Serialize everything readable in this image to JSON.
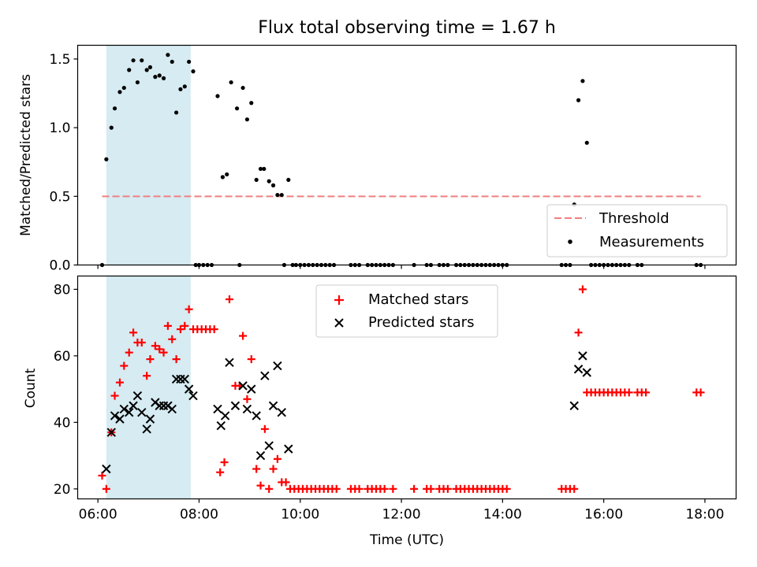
{
  "chart_data": [
    {
      "type": "scatter",
      "title": "Flux total observing time = 1.67 h",
      "ylabel": "Matched/Predicted stars",
      "xlim": [
        "05:36",
        "18:37"
      ],
      "ylim": [
        0,
        1.6
      ],
      "yticks": [
        0.0,
        0.5,
        1.0,
        1.5
      ],
      "ytick_labels": [
        "0.0",
        "0.5",
        "1.0",
        "1.5"
      ],
      "grid": false,
      "legend_position": "lower right",
      "highlight_span": [
        "06:10",
        "07:50"
      ],
      "highlight_color": "#add8e6",
      "threshold": {
        "name": "Threshold",
        "y": 0.5,
        "x_start": "06:05",
        "x_end": "17:55",
        "color": "#f08080"
      },
      "series": [
        {
          "name": "Measurements",
          "color": "#000000",
          "points": [
            [
              "06:05",
              0
            ],
            [
              "06:10",
              0.77
            ],
            [
              "06:16",
              1.0
            ],
            [
              "06:20",
              1.14
            ],
            [
              "06:26",
              1.26
            ],
            [
              "06:31",
              1.29
            ],
            [
              "06:37",
              1.42
            ],
            [
              "06:42",
              1.49
            ],
            [
              "06:47",
              1.33
            ],
            [
              "06:52",
              1.49
            ],
            [
              "06:58",
              1.42
            ],
            [
              "07:02",
              1.44
            ],
            [
              "07:08",
              1.37
            ],
            [
              "07:13",
              1.38
            ],
            [
              "07:18",
              1.36
            ],
            [
              "07:23",
              1.53
            ],
            [
              "07:28",
              1.48
            ],
            [
              "07:33",
              1.11
            ],
            [
              "07:38",
              1.28
            ],
            [
              "07:43",
              1.3
            ],
            [
              "07:48",
              1.48
            ],
            [
              "07:53",
              1.41
            ],
            [
              "07:56",
              0
            ],
            [
              "08:00",
              0
            ],
            [
              "08:05",
              0
            ],
            [
              "08:10",
              0
            ],
            [
              "08:15",
              0
            ],
            [
              "08:22",
              1.23
            ],
            [
              "08:28",
              0.64
            ],
            [
              "08:33",
              0.66
            ],
            [
              "08:38",
              1.33
            ],
            [
              "08:45",
              1.14
            ],
            [
              "08:48",
              0
            ],
            [
              "08:52",
              1.29
            ],
            [
              "08:57",
              1.06
            ],
            [
              "09:02",
              1.18
            ],
            [
              "09:08",
              0.62
            ],
            [
              "09:13",
              0.7
            ],
            [
              "09:17",
              0.7
            ],
            [
              "09:23",
              0.61
            ],
            [
              "09:28",
              0.58
            ],
            [
              "09:33",
              0.51
            ],
            [
              "09:38",
              0.51
            ],
            [
              "09:41",
              0
            ],
            [
              "09:46",
              0.62
            ],
            [
              "09:51",
              0
            ],
            [
              "09:55",
              0
            ],
            [
              "10:00",
              0
            ],
            [
              "10:05",
              0
            ],
            [
              "10:10",
              0
            ],
            [
              "10:15",
              0
            ],
            [
              "10:20",
              0
            ],
            [
              "10:25",
              0
            ],
            [
              "10:30",
              0
            ],
            [
              "10:35",
              0
            ],
            [
              "10:40",
              0
            ],
            [
              "11:00",
              0
            ],
            [
              "11:05",
              0
            ],
            [
              "11:10",
              0
            ],
            [
              "11:20",
              0
            ],
            [
              "11:25",
              0
            ],
            [
              "11:30",
              0
            ],
            [
              "11:35",
              0
            ],
            [
              "11:40",
              0
            ],
            [
              "11:45",
              0
            ],
            [
              "11:50",
              0
            ],
            [
              "12:15",
              0
            ],
            [
              "12:30",
              0
            ],
            [
              "12:35",
              0
            ],
            [
              "12:45",
              0
            ],
            [
              "12:50",
              0
            ],
            [
              "12:55",
              0
            ],
            [
              "13:05",
              0
            ],
            [
              "13:10",
              0
            ],
            [
              "13:15",
              0
            ],
            [
              "13:20",
              0
            ],
            [
              "13:25",
              0
            ],
            [
              "13:30",
              0
            ],
            [
              "13:35",
              0
            ],
            [
              "13:40",
              0
            ],
            [
              "13:45",
              0
            ],
            [
              "13:50",
              0
            ],
            [
              "13:55",
              0
            ],
            [
              "14:00",
              0
            ],
            [
              "14:05",
              0
            ],
            [
              "15:10",
              0
            ],
            [
              "15:15",
              0
            ],
            [
              "15:20",
              0
            ],
            [
              "15:25",
              0.44
            ],
            [
              "15:30",
              1.2
            ],
            [
              "15:35",
              1.34
            ],
            [
              "15:40",
              0.89
            ],
            [
              "15:45",
              0
            ],
            [
              "15:50",
              0
            ],
            [
              "15:55",
              0
            ],
            [
              "16:00",
              0
            ],
            [
              "16:05",
              0
            ],
            [
              "16:10",
              0
            ],
            [
              "16:15",
              0
            ],
            [
              "16:20",
              0
            ],
            [
              "16:25",
              0
            ],
            [
              "16:30",
              0
            ],
            [
              "16:40",
              0
            ],
            [
              "16:45",
              0
            ],
            [
              "17:50",
              0
            ],
            [
              "17:55",
              0
            ]
          ]
        }
      ]
    },
    {
      "type": "scatter",
      "xlabel": "Time (UTC)",
      "ylabel": "Count",
      "xlim": [
        "05:36",
        "18:37"
      ],
      "xticks": [
        "06:00",
        "08:00",
        "10:00",
        "12:00",
        "14:00",
        "16:00",
        "18:00"
      ],
      "ylim": [
        17,
        84
      ],
      "yticks": [
        20,
        40,
        60,
        80
      ],
      "ytick_labels": [
        "20",
        "40",
        "60",
        "80"
      ],
      "grid": false,
      "legend_position": "upper center",
      "highlight_span": [
        "06:10",
        "07:50"
      ],
      "highlight_color": "#add8e6",
      "series": [
        {
          "name": "Matched stars",
          "marker": "+",
          "color": "#ff0000",
          "points": [
            [
              "06:05",
              24
            ],
            [
              "06:10",
              20
            ],
            [
              "06:16",
              37
            ],
            [
              "06:20",
              48
            ],
            [
              "06:26",
              52
            ],
            [
              "06:31",
              57
            ],
            [
              "06:37",
              61
            ],
            [
              "06:42",
              67
            ],
            [
              "06:47",
              64
            ],
            [
              "06:52",
              64
            ],
            [
              "06:58",
              54
            ],
            [
              "07:02",
              59
            ],
            [
              "07:08",
              63
            ],
            [
              "07:13",
              62
            ],
            [
              "07:18",
              61
            ],
            [
              "07:23",
              69
            ],
            [
              "07:28",
              65
            ],
            [
              "07:33",
              59
            ],
            [
              "07:38",
              68
            ],
            [
              "07:43",
              69
            ],
            [
              "07:48",
              74
            ],
            [
              "07:53",
              68
            ],
            [
              "07:58",
              68
            ],
            [
              "08:03",
              68
            ],
            [
              "08:08",
              68
            ],
            [
              "08:13",
              68
            ],
            [
              "08:18",
              68
            ],
            [
              "08:25",
              25
            ],
            [
              "08:30",
              28
            ],
            [
              "08:36",
              77
            ],
            [
              "08:43",
              51
            ],
            [
              "08:48",
              51
            ],
            [
              "08:52",
              66
            ],
            [
              "08:57",
              47
            ],
            [
              "09:02",
              59
            ],
            [
              "09:08",
              26
            ],
            [
              "09:13",
              21
            ],
            [
              "09:18",
              38
            ],
            [
              "09:23",
              20
            ],
            [
              "09:28",
              26
            ],
            [
              "09:33",
              29
            ],
            [
              "09:38",
              22
            ],
            [
              "09:43",
              22
            ],
            [
              "09:48",
              20
            ],
            [
              "09:53",
              20
            ],
            [
              "09:58",
              20
            ],
            [
              "10:03",
              20
            ],
            [
              "10:08",
              20
            ],
            [
              "10:13",
              20
            ],
            [
              "10:18",
              20
            ],
            [
              "10:23",
              20
            ],
            [
              "10:28",
              20
            ],
            [
              "10:33",
              20
            ],
            [
              "10:38",
              20
            ],
            [
              "10:43",
              20
            ],
            [
              "11:00",
              20
            ],
            [
              "11:05",
              20
            ],
            [
              "11:10",
              20
            ],
            [
              "11:20",
              20
            ],
            [
              "11:25",
              20
            ],
            [
              "11:30",
              20
            ],
            [
              "11:35",
              20
            ],
            [
              "11:40",
              20
            ],
            [
              "11:50",
              20
            ],
            [
              "12:15",
              20
            ],
            [
              "12:30",
              20
            ],
            [
              "12:35",
              20
            ],
            [
              "12:45",
              20
            ],
            [
              "12:50",
              20
            ],
            [
              "12:55",
              20
            ],
            [
              "13:05",
              20
            ],
            [
              "13:10",
              20
            ],
            [
              "13:15",
              20
            ],
            [
              "13:20",
              20
            ],
            [
              "13:25",
              20
            ],
            [
              "13:30",
              20
            ],
            [
              "13:35",
              20
            ],
            [
              "13:40",
              20
            ],
            [
              "13:45",
              20
            ],
            [
              "13:50",
              20
            ],
            [
              "13:55",
              20
            ],
            [
              "14:00",
              20
            ],
            [
              "14:05",
              20
            ],
            [
              "15:10",
              20
            ],
            [
              "15:15",
              20
            ],
            [
              "15:20",
              20
            ],
            [
              "15:25",
              20
            ],
            [
              "15:30",
              67
            ],
            [
              "15:35",
              80
            ],
            [
              "15:40",
              49
            ],
            [
              "15:45",
              49
            ],
            [
              "15:50",
              49
            ],
            [
              "15:55",
              49
            ],
            [
              "16:00",
              49
            ],
            [
              "16:05",
              49
            ],
            [
              "16:10",
              49
            ],
            [
              "16:15",
              49
            ],
            [
              "16:20",
              49
            ],
            [
              "16:25",
              49
            ],
            [
              "16:30",
              49
            ],
            [
              "16:40",
              49
            ],
            [
              "16:45",
              49
            ],
            [
              "16:50",
              49
            ],
            [
              "17:50",
              49
            ],
            [
              "17:55",
              49
            ]
          ]
        },
        {
          "name": "Predicted stars",
          "marker": "x",
          "color": "#000000",
          "points": [
            [
              "06:10",
              26
            ],
            [
              "06:16",
              37
            ],
            [
              "06:20",
              42
            ],
            [
              "06:26",
              41
            ],
            [
              "06:31",
              44
            ],
            [
              "06:37",
              43
            ],
            [
              "06:42",
              45
            ],
            [
              "06:47",
              48
            ],
            [
              "06:52",
              43
            ],
            [
              "06:58",
              38
            ],
            [
              "07:02",
              41
            ],
            [
              "07:08",
              46
            ],
            [
              "07:13",
              45
            ],
            [
              "07:18",
              45
            ],
            [
              "07:23",
              45
            ],
            [
              "07:28",
              44
            ],
            [
              "07:33",
              53
            ],
            [
              "07:38",
              53
            ],
            [
              "07:43",
              53
            ],
            [
              "07:48",
              50
            ],
            [
              "07:53",
              48
            ],
            [
              "08:22",
              44
            ],
            [
              "08:26",
              39
            ],
            [
              "08:31",
              42
            ],
            [
              "08:36",
              58
            ],
            [
              "08:43",
              45
            ],
            [
              "08:52",
              51
            ],
            [
              "08:57",
              44
            ],
            [
              "09:02",
              50
            ],
            [
              "09:08",
              42
            ],
            [
              "09:13",
              30
            ],
            [
              "09:18",
              54
            ],
            [
              "09:23",
              33
            ],
            [
              "09:28",
              45
            ],
            [
              "09:33",
              57
            ],
            [
              "09:38",
              43
            ],
            [
              "09:46",
              32
            ],
            [
              "15:25",
              45
            ],
            [
              "15:30",
              56
            ],
            [
              "15:35",
              60
            ],
            [
              "15:40",
              55
            ]
          ]
        }
      ]
    }
  ]
}
